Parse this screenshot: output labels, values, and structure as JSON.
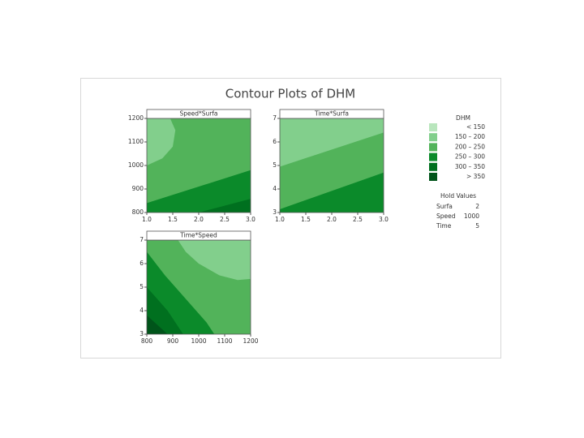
{
  "chart_data": {
    "type": "contour",
    "title": "Contour Plots of DHM",
    "panels": [
      {
        "title": "Speed*Surfa",
        "background": "#52b35a",
        "xlim": [
          1,
          3
        ],
        "xticks": [
          {
            "value": 1,
            "label": "1.0"
          },
          {
            "value": 1.5,
            "label": "1.5"
          },
          {
            "value": 2,
            "label": "2.0"
          },
          {
            "value": 2.5,
            "label": "2.5"
          },
          {
            "value": 3,
            "label": "3.0"
          }
        ],
        "ylim": [
          800,
          1200
        ],
        "yticks": [
          800,
          900,
          1000,
          1100,
          1200
        ],
        "regions": [
          {
            "color": "#82cf8c",
            "x": [
              1,
              1.45,
              1.55,
              1.5,
              1.3,
              1
            ],
            "y": [
              1200,
              1200,
              1150,
              1080,
              1030,
              1000
            ]
          },
          {
            "color": "#0b8a2a",
            "x": [
              1,
              3,
              3,
              1
            ],
            "y": [
              840,
              980,
              800,
              800
            ]
          },
          {
            "color": "#00701f",
            "x": [
              2,
              3,
              3
            ],
            "y": [
              800,
              858,
              800
            ]
          }
        ]
      },
      {
        "title": "Time*Surfa",
        "background": "#52b35a",
        "xlim": [
          1,
          3
        ],
        "xticks": [
          {
            "value": 1,
            "label": "1.0"
          },
          {
            "value": 1.5,
            "label": "1.5"
          },
          {
            "value": 2,
            "label": "2.0"
          },
          {
            "value": 2.5,
            "label": "2.5"
          },
          {
            "value": 3,
            "label": "3.0"
          }
        ],
        "ylim": [
          3,
          7
        ],
        "yticks": [
          3,
          4,
          5,
          6,
          7
        ],
        "regions": [
          {
            "color": "#82cf8c",
            "x": [
              1,
              3,
              3,
              1
            ],
            "y": [
              4.95,
              6.4,
              7,
              7
            ]
          },
          {
            "color": "#0b8a2a",
            "x": [
              1,
              3,
              3,
              1
            ],
            "y": [
              3.14,
              4.7,
              3,
              3
            ]
          }
        ]
      },
      {
        "title": "Time*Speed",
        "background": "#52b35a",
        "xlim": [
          800,
          1200
        ],
        "xticks": [
          800,
          900,
          1000,
          1100,
          1200
        ],
        "ylim": [
          3,
          7
        ],
        "yticks": [
          3,
          4,
          5,
          6,
          7
        ],
        "regions": [
          {
            "color": "#82cf8c",
            "x": [
              920,
              1200,
              1200,
              1150,
              1080,
              1000,
              950
            ],
            "y": [
              7,
              7,
              5.35,
              5.3,
              5.5,
              6,
              6.5
            ]
          },
          {
            "color": "#0b8a2a",
            "x": [
              800,
              800,
              870,
              950,
              1030,
              1060
            ],
            "y": [
              3,
              6.5,
              5.5,
              4.5,
              3.5,
              3
            ]
          },
          {
            "color": "#00701f",
            "x": [
              800,
              800,
              880,
              940
            ],
            "y": [
              3,
              5,
              4,
              3
            ]
          },
          {
            "color": "#00541a",
            "x": [
              800,
              800,
              850,
              880
            ],
            "y": [
              3,
              3.8,
              3.3,
              3
            ]
          }
        ]
      }
    ],
    "legend": {
      "title": "DHM",
      "items": [
        {
          "label": "< 150",
          "color": "#b9e6bd"
        },
        {
          "label": "150 – 200",
          "color": "#82cf8c"
        },
        {
          "label": "200 – 250",
          "color": "#52b35a"
        },
        {
          "label": "250 – 300",
          "color": "#0b8a2a"
        },
        {
          "label": "300 – 350",
          "color": "#00701f"
        },
        {
          "label": "> 350",
          "color": "#00541a"
        }
      ]
    },
    "hold_values": {
      "title": "Hold Values",
      "rows": [
        [
          "Surfa",
          2
        ],
        [
          "Speed",
          1000
        ],
        [
          "Time",
          5
        ]
      ]
    }
  }
}
